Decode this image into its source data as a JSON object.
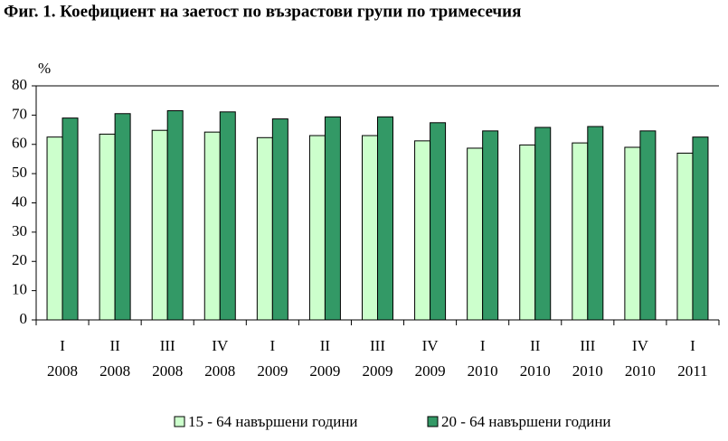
{
  "chart_data": {
    "type": "bar",
    "title": "Фиг. 1. Коефициент на заетост по възрастови групи по тримесечия",
    "y_unit": "%",
    "categories": [
      [
        "I",
        "2008"
      ],
      [
        "II",
        "2008"
      ],
      [
        "III",
        "2008"
      ],
      [
        "IV",
        "2008"
      ],
      [
        "I",
        "2009"
      ],
      [
        "II",
        "2009"
      ],
      [
        "III",
        "2009"
      ],
      [
        "IV",
        "2009"
      ],
      [
        "I",
        "2010"
      ],
      [
        "II",
        "2010"
      ],
      [
        "III",
        "2010"
      ],
      [
        "IV",
        "2010"
      ],
      [
        "I",
        "2011"
      ]
    ],
    "series": [
      {
        "name": "15 - 64 навършени години",
        "color": "#ccffcc",
        "values": [
          62.5,
          63.5,
          64.8,
          64.2,
          62.3,
          63.0,
          63.0,
          61.2,
          58.7,
          59.8,
          60.5,
          59.0,
          57.0
        ]
      },
      {
        "name": "20 - 64 навършени години",
        "color": "#339966",
        "values": [
          69.0,
          70.5,
          71.5,
          71.1,
          68.7,
          69.4,
          69.4,
          67.4,
          64.6,
          65.8,
          66.1,
          64.6,
          62.5
        ]
      }
    ],
    "ylim": [
      0,
      80
    ],
    "yticks": [
      0,
      10,
      20,
      30,
      40,
      50,
      60,
      70,
      80
    ]
  }
}
